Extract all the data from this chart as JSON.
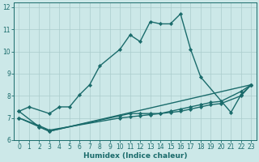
{
  "xlabel": "Humidex (Indice chaleur)",
  "xlim": [
    -0.5,
    23.5
  ],
  "ylim": [
    6,
    12.2
  ],
  "xticks": [
    0,
    1,
    2,
    3,
    4,
    5,
    6,
    7,
    8,
    9,
    10,
    11,
    12,
    13,
    14,
    15,
    16,
    17,
    18,
    19,
    20,
    21,
    22,
    23
  ],
  "yticks": [
    6,
    7,
    8,
    9,
    10,
    11,
    12
  ],
  "bg_color": "#cce8e8",
  "grid_color": "#aacccc",
  "line_color": "#1a6b6b",
  "line_width": 1.0,
  "marker": "D",
  "marker_size": 2.2,
  "curves": [
    {
      "x": [
        0,
        1,
        3,
        4,
        5,
        6,
        7,
        8,
        10,
        11,
        12,
        13,
        14,
        15,
        16,
        17,
        18,
        21,
        22,
        23
      ],
      "y": [
        7.3,
        7.5,
        7.2,
        7.5,
        7.5,
        8.05,
        8.5,
        9.35,
        10.1,
        10.75,
        10.45,
        11.35,
        11.25,
        11.25,
        11.7,
        10.1,
        8.85,
        7.25,
        8.05,
        8.5
      ]
    },
    {
      "x": [
        0,
        2,
        3,
        23
      ],
      "y": [
        7.3,
        6.6,
        6.4,
        8.5
      ]
    },
    {
      "x": [
        0,
        2,
        3,
        10,
        11,
        12,
        13,
        14,
        15,
        16,
        17,
        18,
        19,
        20,
        22,
        23
      ],
      "y": [
        7.0,
        6.6,
        6.4,
        7.1,
        7.2,
        7.2,
        7.2,
        7.2,
        7.3,
        7.4,
        7.5,
        7.6,
        7.7,
        7.75,
        8.2,
        8.5
      ]
    },
    {
      "x": [
        0,
        2,
        3,
        10,
        11,
        12,
        13,
        14,
        15,
        16,
        17,
        18,
        19,
        20,
        22,
        23
      ],
      "y": [
        7.0,
        6.65,
        6.45,
        7.0,
        7.05,
        7.1,
        7.15,
        7.2,
        7.25,
        7.3,
        7.4,
        7.5,
        7.6,
        7.65,
        8.0,
        8.5
      ]
    }
  ]
}
